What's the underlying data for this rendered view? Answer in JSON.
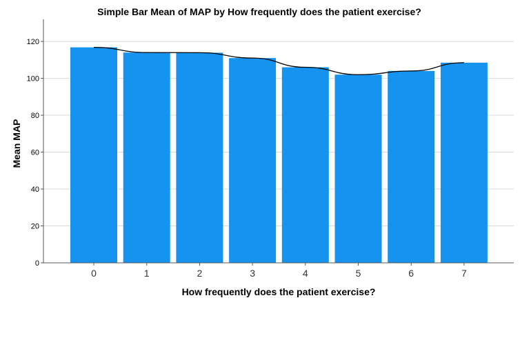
{
  "chart_data": {
    "type": "bar",
    "title": "Simple Bar Mean of MAP  by How frequently does the patient exercise?",
    "xlabel": "How frequently does the patient exercise?",
    "ylabel": "Mean MAP",
    "categories": [
      "0",
      "1",
      "2",
      "3",
      "4",
      "5",
      "6",
      "7"
    ],
    "values": [
      116.8,
      114.0,
      113.9,
      111.0,
      106.0,
      102.0,
      104.0,
      108.5
    ],
    "trend_line": [
      116.8,
      114.0,
      113.9,
      111.0,
      106.0,
      102.0,
      104.0,
      108.5
    ],
    "ylim": [
      0,
      132
    ],
    "yticks": [
      0,
      20,
      40,
      60,
      80,
      100,
      120
    ],
    "grid": true,
    "bar_color": "#1593ee",
    "line_color": "#000000"
  }
}
